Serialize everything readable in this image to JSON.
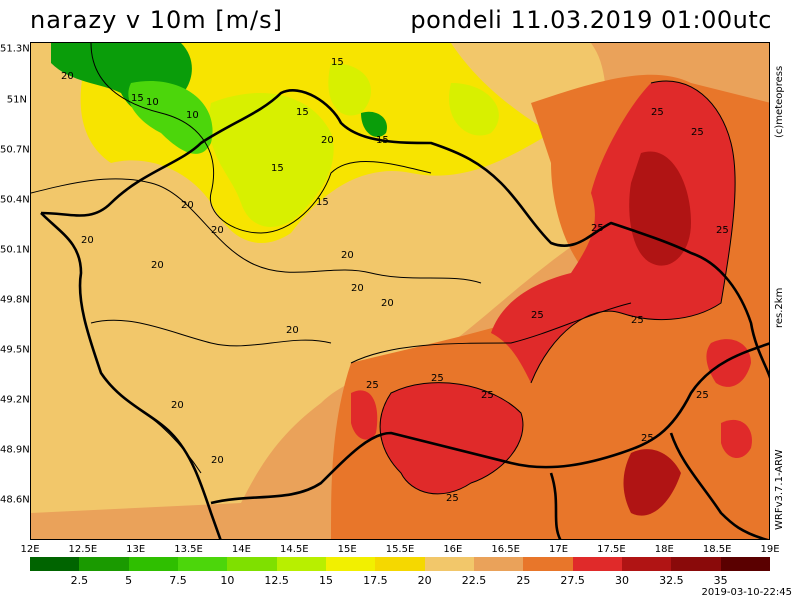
{
  "header": {
    "title_left": "narazy  v  10m  [m/s]",
    "title_right": "pondeli  11.03.2019  01:00utc"
  },
  "map": {
    "lat_labels": [
      "51.3N",
      "51N",
      "50.7N",
      "50.4N",
      "50.1N",
      "49.8N",
      "49.5N",
      "49.2N",
      "48.9N",
      "48.6N"
    ],
    "lon_labels": [
      "12E",
      "12.5E",
      "13E",
      "13.5E",
      "14E",
      "14.5E",
      "15E",
      "15.5E",
      "16E",
      "16.5E",
      "17E",
      "17.5E",
      "18E",
      "18.5E",
      "19E"
    ],
    "contour_labels": [
      "15",
      "15",
      "15",
      "15",
      "15",
      "15",
      "10",
      "10",
      "20",
      "20",
      "20",
      "20",
      "20",
      "20",
      "20",
      "20",
      "20",
      "20",
      "20",
      "20",
      "25",
      "25",
      "25",
      "25",
      "25",
      "25",
      "25",
      "25",
      "25",
      "25",
      "25",
      "25"
    ],
    "colors": {
      "green_dark": "#0a9d0a",
      "green_light": "#7fe000",
      "yellow_green": "#d8f000",
      "yellow": "#f7e400",
      "light_orange": "#f2c76a",
      "orange_light": "#eaa25a",
      "orange": "#e8762a",
      "red": "#e02a2a",
      "dark_red": "#b01414"
    }
  },
  "side": {
    "copyright": "(c)meteopress",
    "resolution": "res.2km",
    "model": "WRFv3.7.1-ARW"
  },
  "legend": {
    "ticks": [
      "2.5",
      "5",
      "7.5",
      "10",
      "12.5",
      "15",
      "17.5",
      "20",
      "22.5",
      "25",
      "27.5",
      "30",
      "32.5",
      "35"
    ],
    "colors": [
      "#006400",
      "#1a9a00",
      "#2fbf00",
      "#4cd60b",
      "#7fe000",
      "#b8ef00",
      "#f2f000",
      "#f5d800",
      "#f2c76a",
      "#eaa25a",
      "#e8762a",
      "#e02a2a",
      "#b01414",
      "#8a0a0a",
      "#5a0000"
    ]
  },
  "footer": {
    "timestamp": "2019-03-10-22:45"
  }
}
